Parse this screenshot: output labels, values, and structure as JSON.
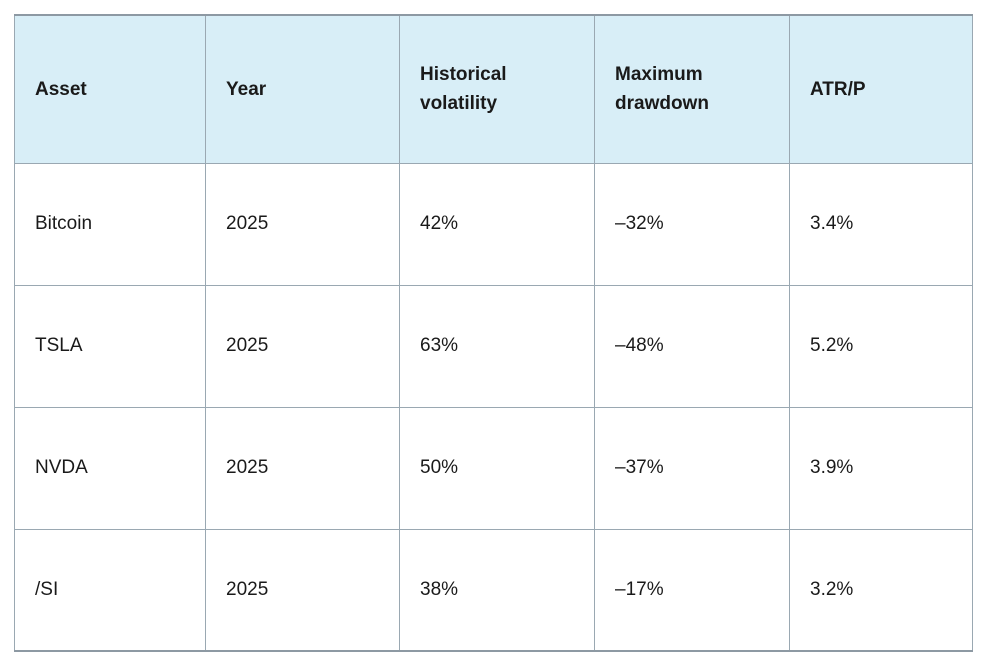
{
  "chart_data": {
    "type": "table",
    "columns": [
      "Asset",
      "Year",
      "Historical volatility",
      "Maximum drawdown",
      "ATR/P"
    ],
    "rows": [
      [
        "Bitcoin",
        "2025",
        "42%",
        "–32%",
        "3.4%"
      ],
      [
        "TSLA",
        "2025",
        "63%",
        "–48%",
        "5.2%"
      ],
      [
        "NVDA",
        "2025",
        "50%",
        "–37%",
        "3.9%"
      ],
      [
        "/SI",
        "2025",
        "38%",
        "–17%",
        "3.2%"
      ]
    ]
  },
  "colors": {
    "header_bg": "#d8eef7",
    "grid_border": "#9aa8b2",
    "outer_border": "#8d99a3",
    "text": "#1a1a1a",
    "page_bg": "#ffffff"
  }
}
